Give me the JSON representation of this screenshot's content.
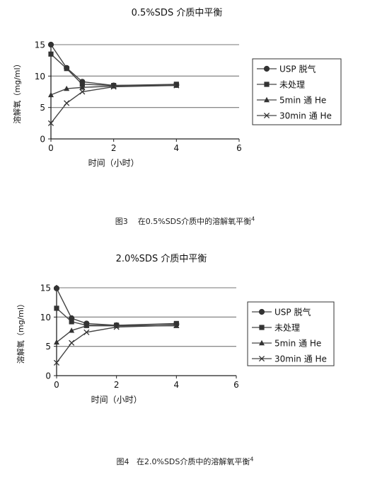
{
  "chart_data": [
    {
      "type": "line",
      "title": "0.5%SDS 介质中平衡",
      "xlabel": "时间（小时）",
      "ylabel": "溶解氧（mg/ml）",
      "xlim": [
        0,
        6
      ],
      "ylim": [
        0,
        15
      ],
      "xticks": [
        "0",
        "2",
        "4",
        "6"
      ],
      "yticks": [
        "0",
        "5",
        "10",
        "15"
      ],
      "grid": "horizontal",
      "legend_position": "right",
      "caption": {
        "prefix": "图3",
        "text": "在0.5%SDS介质中的溶解氧平衡",
        "sup": "4"
      },
      "series": [
        {
          "name": "USP 脱气",
          "marker": "circle",
          "x": [
            0,
            0.5,
            1,
            2,
            4
          ],
          "y": [
            15.0,
            11.3,
            9.1,
            8.5,
            8.6
          ]
        },
        {
          "name": "未处理",
          "marker": "square",
          "x": [
            0,
            0.5,
            1,
            2,
            4
          ],
          "y": [
            13.5,
            11.2,
            8.7,
            8.5,
            8.7
          ]
        },
        {
          "name": "5min 通 He",
          "marker": "triangle",
          "x": [
            0,
            0.5,
            1,
            2,
            4
          ],
          "y": [
            7.0,
            8.0,
            8.2,
            8.4,
            8.5
          ]
        },
        {
          "name": "30min 通 He",
          "marker": "x",
          "x": [
            0,
            0.5,
            1,
            2,
            4
          ],
          "y": [
            2.5,
            5.7,
            7.5,
            8.3,
            8.5
          ]
        }
      ]
    },
    {
      "type": "line",
      "title": "2.0%SDS 介质中平衡",
      "xlabel": "时间（小时）",
      "ylabel": "溶解氧（mg/ml）",
      "xlim": [
        0,
        6
      ],
      "ylim": [
        0,
        15
      ],
      "xticks": [
        "0",
        "2",
        "4",
        "6"
      ],
      "yticks": [
        "0",
        "5",
        "10",
        "15"
      ],
      "grid": "horizontal",
      "legend_position": "right",
      "caption": {
        "prefix": "图4",
        "text": "在2.0%SDS介质中的溶解氧平衡",
        "sup": "4"
      },
      "series": [
        {
          "name": "USP 脱气",
          "marker": "circle",
          "x": [
            0,
            0.5,
            1,
            2,
            4
          ],
          "y": [
            14.9,
            9.8,
            8.9,
            8.6,
            8.8
          ]
        },
        {
          "name": "未处理",
          "marker": "square",
          "x": [
            0,
            0.5,
            1,
            2,
            4
          ],
          "y": [
            11.5,
            9.2,
            8.6,
            8.6,
            8.9
          ]
        },
        {
          "name": "5min 通 He",
          "marker": "triangle",
          "x": [
            0,
            0.5,
            1,
            2,
            4
          ],
          "y": [
            5.7,
            7.7,
            8.5,
            8.5,
            8.5
          ]
        },
        {
          "name": "30min 通 He",
          "marker": "x",
          "x": [
            0,
            0.5,
            1,
            2,
            4
          ],
          "y": [
            2.2,
            5.6,
            7.4,
            8.3,
            8.6
          ]
        }
      ]
    }
  ]
}
